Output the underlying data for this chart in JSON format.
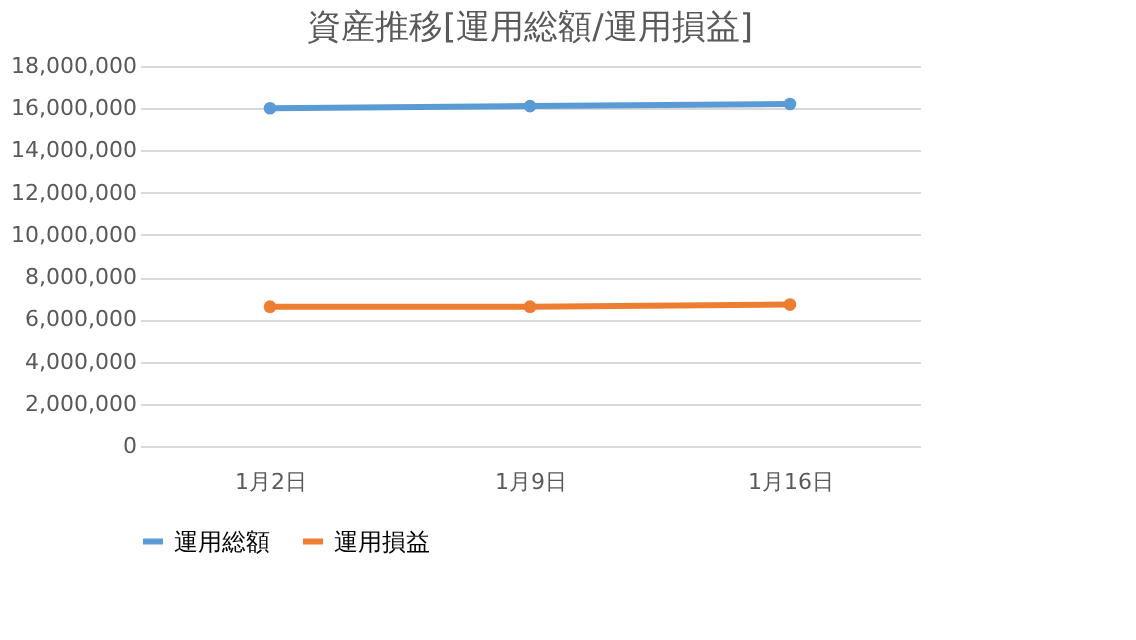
{
  "chart_data": {
    "type": "line",
    "title": "資産推移[運用総額/運用損益]",
    "categories": [
      "1月2日",
      "1月9日",
      "1月16日"
    ],
    "series": [
      {
        "name": "運用総額",
        "color": "#5b9bd5",
        "values": [
          16000000,
          16100000,
          16200000
        ]
      },
      {
        "name": "運用損益",
        "color": "#ed7d31",
        "values": [
          6600000,
          6600000,
          6700000
        ]
      }
    ],
    "ylim": [
      0,
      18000000
    ],
    "yticks": [
      {
        "value": 0,
        "label": "0"
      },
      {
        "value": 2000000,
        "label": "2,000,000"
      },
      {
        "value": 4000000,
        "label": "4,000,000"
      },
      {
        "value": 6000000,
        "label": "6,000,000"
      },
      {
        "value": 8000000,
        "label": "8,000,000"
      },
      {
        "value": 10000000,
        "label": "10,000,000"
      },
      {
        "value": 12000000,
        "label": "12,000,000"
      },
      {
        "value": 14000000,
        "label": "14,000,000"
      },
      {
        "value": 16000000,
        "label": "16,000,000"
      },
      {
        "value": 18000000,
        "label": "18,000,000"
      }
    ],
    "grid": "y",
    "legend": "bottom",
    "marker": "circle",
    "line_style": "solid"
  }
}
